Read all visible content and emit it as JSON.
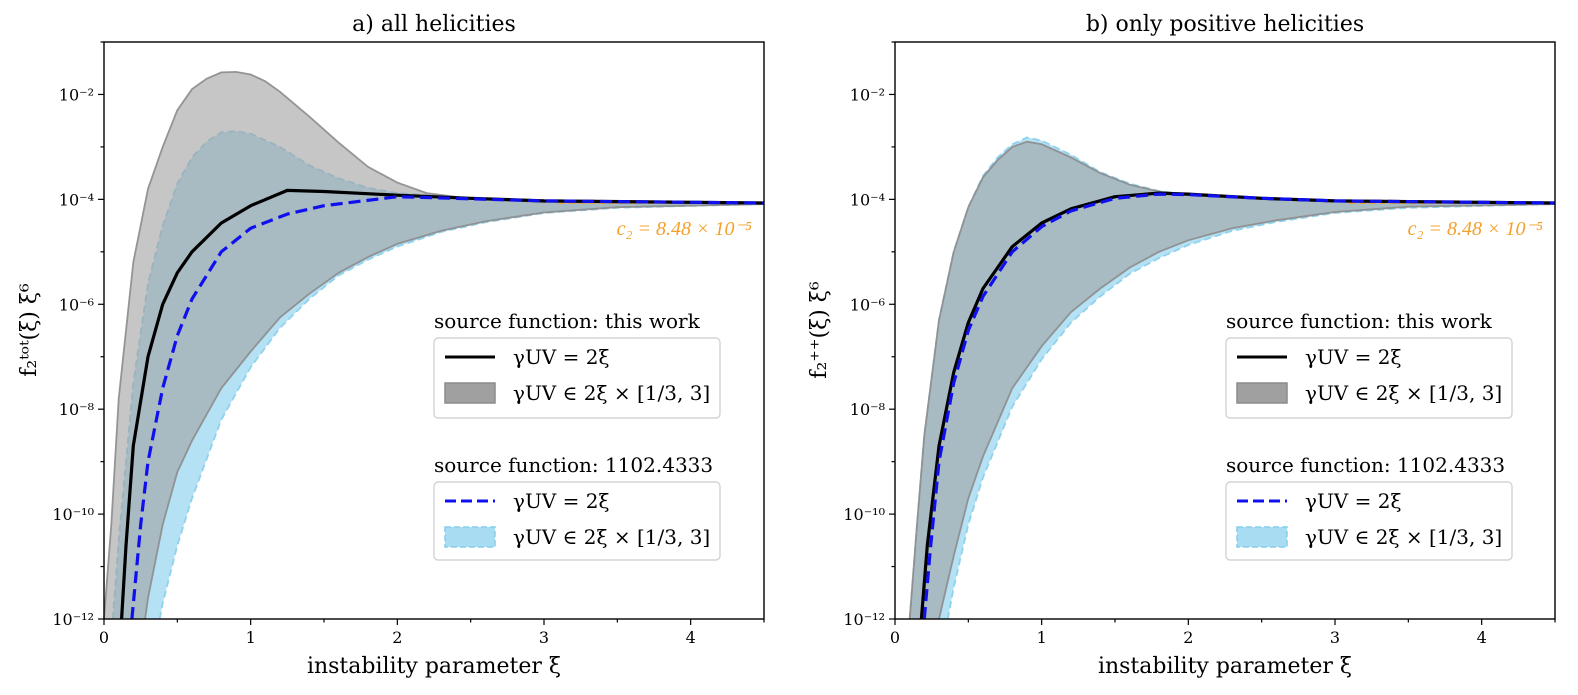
{
  "colors": {
    "black": "#000000",
    "blue": "#1010ee",
    "gray_fill": "#a0a0a0",
    "gray_edge": "#8c8c8c",
    "sky_fill": "#a8dcf2",
    "sky_edge": "#87ceeb",
    "orange": "#f5a02a"
  },
  "chart_data": [
    {
      "type": "line",
      "panel": "a",
      "title": "a) all helicities",
      "xlabel": "instability parameter ξ",
      "ylabel": "f₂ᵗᵒᵗ(ξ) ξ⁶",
      "xlim": [
        0,
        4.5
      ],
      "ylim_log10": [
        -12,
        -1
      ],
      "yscale": "log",
      "x_ticks": [
        "0",
        "1",
        "2",
        "3",
        "4"
      ],
      "y_ticks": [
        "10⁻²",
        "10⁻⁴",
        "10⁻⁶",
        "10⁻⁸",
        "10⁻¹⁰",
        "10⁻¹²"
      ],
      "annotation": "c₂ = 8.48 × 10⁻⁵",
      "c2_log10": -4.07,
      "legend": [
        {
          "title": "source function: this work",
          "entries": [
            "γUV = 2ξ",
            "γUV ∈ 2ξ × [1/3, 3]"
          ]
        },
        {
          "title": "source function: 1102.4333",
          "entries": [
            "γUV = 2ξ",
            "γUV ∈ 2ξ × [1/3, 3]"
          ]
        }
      ],
      "series": [
        {
          "name": "this work γUV = 2ξ",
          "style": "solid-black",
          "x": [
            0.12,
            0.15,
            0.2,
            0.3,
            0.4,
            0.5,
            0.6,
            0.8,
            1.0,
            1.25,
            1.5,
            2.0,
            2.5,
            3.0,
            4.5
          ],
          "log10_y": [
            -12.0,
            -10.6,
            -8.7,
            -7.0,
            -6.0,
            -5.4,
            -5.0,
            -4.45,
            -4.12,
            -3.83,
            -3.85,
            -3.92,
            -3.98,
            -4.03,
            -4.07
          ]
        },
        {
          "name": "1102.4333 γUV = 2ξ",
          "style": "dashed-blue",
          "x": [
            0.19,
            0.25,
            0.3,
            0.4,
            0.5,
            0.6,
            0.8,
            1.0,
            1.25,
            1.5,
            2.0,
            2.5,
            3.0,
            4.5
          ],
          "log10_y": [
            -12.0,
            -10.2,
            -9.0,
            -7.6,
            -6.6,
            -5.9,
            -5.0,
            -4.55,
            -4.28,
            -4.12,
            -3.95,
            -3.99,
            -4.03,
            -4.07
          ]
        },
        {
          "name": "this work band upper",
          "style": "band-gray-upper",
          "x": [
            0.0,
            0.05,
            0.1,
            0.2,
            0.3,
            0.4,
            0.5,
            0.6,
            0.7,
            0.8,
            0.9,
            1.0,
            1.1,
            1.2,
            1.4,
            1.6,
            1.8,
            2.0,
            2.2,
            2.5,
            3.0,
            4.5
          ],
          "log10_y": [
            -12.0,
            -10.2,
            -7.8,
            -5.2,
            -3.8,
            -3.0,
            -2.3,
            -1.9,
            -1.7,
            -1.58,
            -1.57,
            -1.62,
            -1.75,
            -1.95,
            -2.42,
            -2.92,
            -3.38,
            -3.68,
            -3.88,
            -3.99,
            -4.05,
            -4.07
          ]
        },
        {
          "name": "this work band lower",
          "style": "band-gray-lower",
          "x": [
            0.28,
            0.3,
            0.4,
            0.5,
            0.6,
            0.8,
            1.0,
            1.2,
            1.4,
            1.6,
            1.8,
            2.0,
            2.3,
            2.6,
            3.0,
            3.5,
            4.5
          ],
          "log10_y": [
            -12.0,
            -11.6,
            -10.2,
            -9.2,
            -8.6,
            -7.6,
            -6.9,
            -6.25,
            -5.8,
            -5.4,
            -5.1,
            -4.85,
            -4.6,
            -4.42,
            -4.25,
            -4.15,
            -4.09
          ]
        },
        {
          "name": "1102.4333 band upper",
          "style": "band-sky-upper",
          "x": [
            0.06,
            0.1,
            0.2,
            0.3,
            0.4,
            0.5,
            0.6,
            0.7,
            0.8,
            0.9,
            1.0,
            1.2,
            1.4,
            1.6,
            1.8,
            2.0,
            2.5,
            3.0,
            4.5
          ],
          "log10_y": [
            -12.0,
            -10.5,
            -7.5,
            -5.6,
            -4.5,
            -3.7,
            -3.2,
            -2.9,
            -2.72,
            -2.7,
            -2.75,
            -3.0,
            -3.35,
            -3.6,
            -3.78,
            -3.88,
            -3.98,
            -4.04,
            -4.07
          ]
        },
        {
          "name": "1102.4333 band lower",
          "style": "band-sky-lower",
          "x": [
            0.38,
            0.4,
            0.5,
            0.6,
            0.8,
            1.0,
            1.2,
            1.4,
            1.6,
            1.8,
            2.0,
            2.3,
            2.6,
            3.0,
            3.5,
            4.5
          ],
          "log10_y": [
            -12.0,
            -11.7,
            -10.6,
            -9.7,
            -8.2,
            -7.2,
            -6.45,
            -5.9,
            -5.45,
            -5.15,
            -4.9,
            -4.62,
            -4.44,
            -4.26,
            -4.16,
            -4.09
          ]
        }
      ]
    },
    {
      "type": "line",
      "panel": "b",
      "title": "b) only positive helicities",
      "xlabel": "instability parameter ξ",
      "ylabel": "f₂⁺⁺(ξ) ξ⁶",
      "xlim": [
        0,
        4.5
      ],
      "ylim_log10": [
        -12,
        -1
      ],
      "yscale": "log",
      "x_ticks": [
        "0",
        "1",
        "2",
        "3",
        "4"
      ],
      "y_ticks": [
        "10⁻²",
        "10⁻⁴",
        "10⁻⁶",
        "10⁻⁸",
        "10⁻¹⁰",
        "10⁻¹²"
      ],
      "annotation": "c₂ = 8.48 × 10⁻⁵",
      "c2_log10": -4.07,
      "legend": [
        {
          "title": "source function: this work",
          "entries": [
            "γUV = 2ξ",
            "γUV ∈ 2ξ × [1/3, 3]"
          ]
        },
        {
          "title": "source function: 1102.4333",
          "entries": [
            "γUV = 2ξ",
            "γUV ∈ 2ξ × [1/3, 3]"
          ]
        }
      ],
      "series": [
        {
          "name": "this work γUV = 2ξ",
          "style": "solid-black",
          "x": [
            0.18,
            0.22,
            0.3,
            0.4,
            0.5,
            0.6,
            0.8,
            1.0,
            1.2,
            1.5,
            1.8,
            2.0,
            2.5,
            3.0,
            4.5
          ],
          "log10_y": [
            -12.0,
            -10.6,
            -8.7,
            -7.3,
            -6.35,
            -5.7,
            -4.9,
            -4.45,
            -4.18,
            -3.95,
            -3.88,
            -3.9,
            -3.98,
            -4.03,
            -4.07
          ]
        },
        {
          "name": "1102.4333 γUV = 2ξ",
          "style": "dashed-blue",
          "x": [
            0.2,
            0.24,
            0.3,
            0.4,
            0.5,
            0.6,
            0.8,
            1.0,
            1.2,
            1.5,
            1.8,
            2.0,
            2.5,
            3.0,
            4.5
          ],
          "log10_y": [
            -12.0,
            -10.7,
            -9.0,
            -7.5,
            -6.5,
            -5.85,
            -5.0,
            -4.52,
            -4.22,
            -3.98,
            -3.9,
            -3.91,
            -3.98,
            -4.03,
            -4.07
          ]
        },
        {
          "name": "this work band upper",
          "style": "band-gray-upper",
          "x": [
            0.1,
            0.15,
            0.2,
            0.3,
            0.4,
            0.5,
            0.6,
            0.7,
            0.8,
            0.9,
            1.0,
            1.2,
            1.4,
            1.6,
            1.8,
            2.0,
            2.5,
            3.0,
            4.5
          ],
          "log10_y": [
            -12.0,
            -10.2,
            -8.5,
            -6.3,
            -5.0,
            -4.15,
            -3.58,
            -3.25,
            -3.0,
            -2.9,
            -2.95,
            -3.2,
            -3.5,
            -3.72,
            -3.85,
            -3.92,
            -3.99,
            -4.04,
            -4.07
          ]
        },
        {
          "name": "this work band lower",
          "style": "band-gray-lower",
          "x": [
            0.3,
            0.35,
            0.4,
            0.5,
            0.6,
            0.8,
            1.0,
            1.2,
            1.4,
            1.6,
            1.8,
            2.0,
            2.3,
            2.6,
            3.0,
            3.5,
            4.5
          ],
          "log10_y": [
            -12.0,
            -11.4,
            -10.8,
            -9.7,
            -8.9,
            -7.6,
            -6.8,
            -6.15,
            -5.7,
            -5.3,
            -5.0,
            -4.78,
            -4.55,
            -4.4,
            -4.24,
            -4.14,
            -4.09
          ]
        },
        {
          "name": "1102.4333 band upper",
          "style": "band-sky-upper",
          "x": [
            0.1,
            0.15,
            0.2,
            0.3,
            0.4,
            0.5,
            0.6,
            0.7,
            0.8,
            0.9,
            1.0,
            1.2,
            1.4,
            1.6,
            1.8,
            2.0,
            2.5,
            3.0,
            4.5
          ],
          "log10_y": [
            -12.0,
            -10.2,
            -8.5,
            -6.3,
            -5.0,
            -4.15,
            -3.55,
            -3.2,
            -2.95,
            -2.82,
            -2.88,
            -3.15,
            -3.48,
            -3.7,
            -3.84,
            -3.91,
            -3.99,
            -4.04,
            -4.07
          ]
        },
        {
          "name": "1102.4333 band lower",
          "style": "band-sky-lower",
          "x": [
            0.36,
            0.4,
            0.5,
            0.6,
            0.8,
            1.0,
            1.2,
            1.4,
            1.6,
            1.8,
            2.0,
            2.3,
            2.6,
            3.0,
            3.5,
            4.5
          ],
          "log10_y": [
            -12.0,
            -11.4,
            -10.2,
            -9.3,
            -7.95,
            -7.05,
            -6.35,
            -5.85,
            -5.42,
            -5.12,
            -4.87,
            -4.6,
            -4.43,
            -4.26,
            -4.16,
            -4.09
          ]
        }
      ]
    }
  ]
}
